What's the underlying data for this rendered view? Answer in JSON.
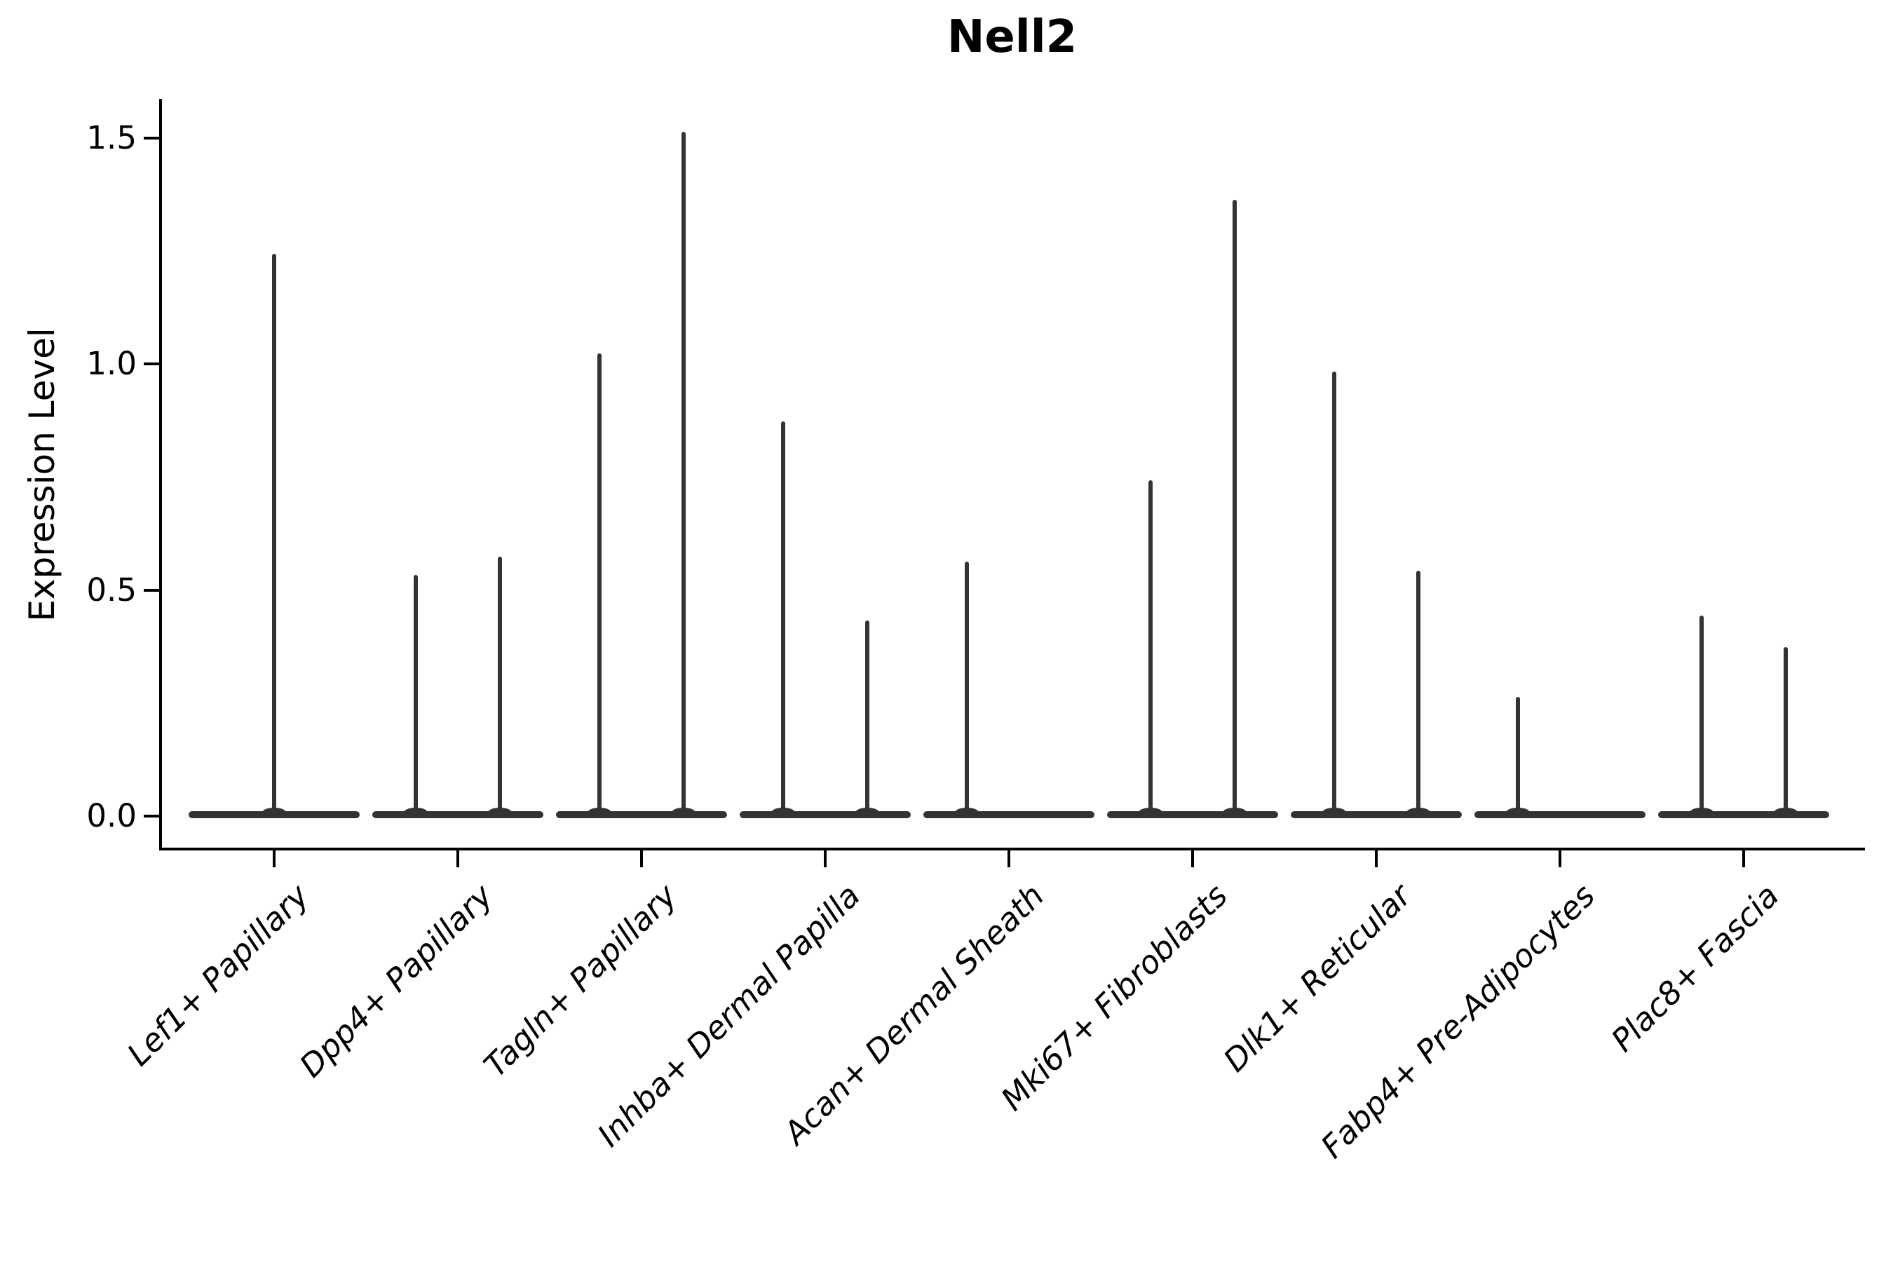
{
  "title": "Nell2",
  "chart_data": {
    "type": "violin",
    "title": "Nell2",
    "xlabel": "",
    "ylabel": "Expression Level",
    "ylim": [
      -0.07,
      1.57
    ],
    "grid": false,
    "legend": null,
    "ytick_values": [
      0.0,
      0.5,
      1.0,
      1.5
    ],
    "ytick_labels": [
      "0.0",
      "0.5",
      "1.0",
      "1.5"
    ],
    "violin_color": "#333333",
    "axis_color": "#000000",
    "categories": [
      {
        "label": "Lef1+ Papillary",
        "violins": [
          {
            "pos": "center",
            "peak": 1.24
          }
        ]
      },
      {
        "label": "Dpp4+ Papillary",
        "violins": [
          {
            "pos": "left",
            "peak": 0.53
          },
          {
            "pos": "right",
            "peak": 0.57
          }
        ]
      },
      {
        "label": "Tagln+ Papillary",
        "violins": [
          {
            "pos": "left",
            "peak": 1.02
          },
          {
            "pos": "right",
            "peak": 1.51
          }
        ]
      },
      {
        "label": "Inhba+ Dermal Papilla",
        "violins": [
          {
            "pos": "left",
            "peak": 0.87
          },
          {
            "pos": "right",
            "peak": 0.43
          }
        ]
      },
      {
        "label": "Acan+ Dermal Sheath",
        "violins": [
          {
            "pos": "left",
            "peak": 0.56
          }
        ]
      },
      {
        "label": "Mki67+ Fibroblasts",
        "violins": [
          {
            "pos": "left",
            "peak": 0.74
          },
          {
            "pos": "right",
            "peak": 1.36
          }
        ]
      },
      {
        "label": "Dlk1+ Reticular",
        "violins": [
          {
            "pos": "left",
            "peak": 0.98
          },
          {
            "pos": "right",
            "peak": 0.54
          }
        ]
      },
      {
        "label": "Fabp4+ Pre-Adipocytes",
        "violins": [
          {
            "pos": "left",
            "peak": 0.26
          }
        ]
      },
      {
        "label": "Plac8+ Fascia",
        "violins": [
          {
            "pos": "left",
            "peak": 0.44
          },
          {
            "pos": "right",
            "peak": 0.37
          }
        ]
      }
    ]
  }
}
